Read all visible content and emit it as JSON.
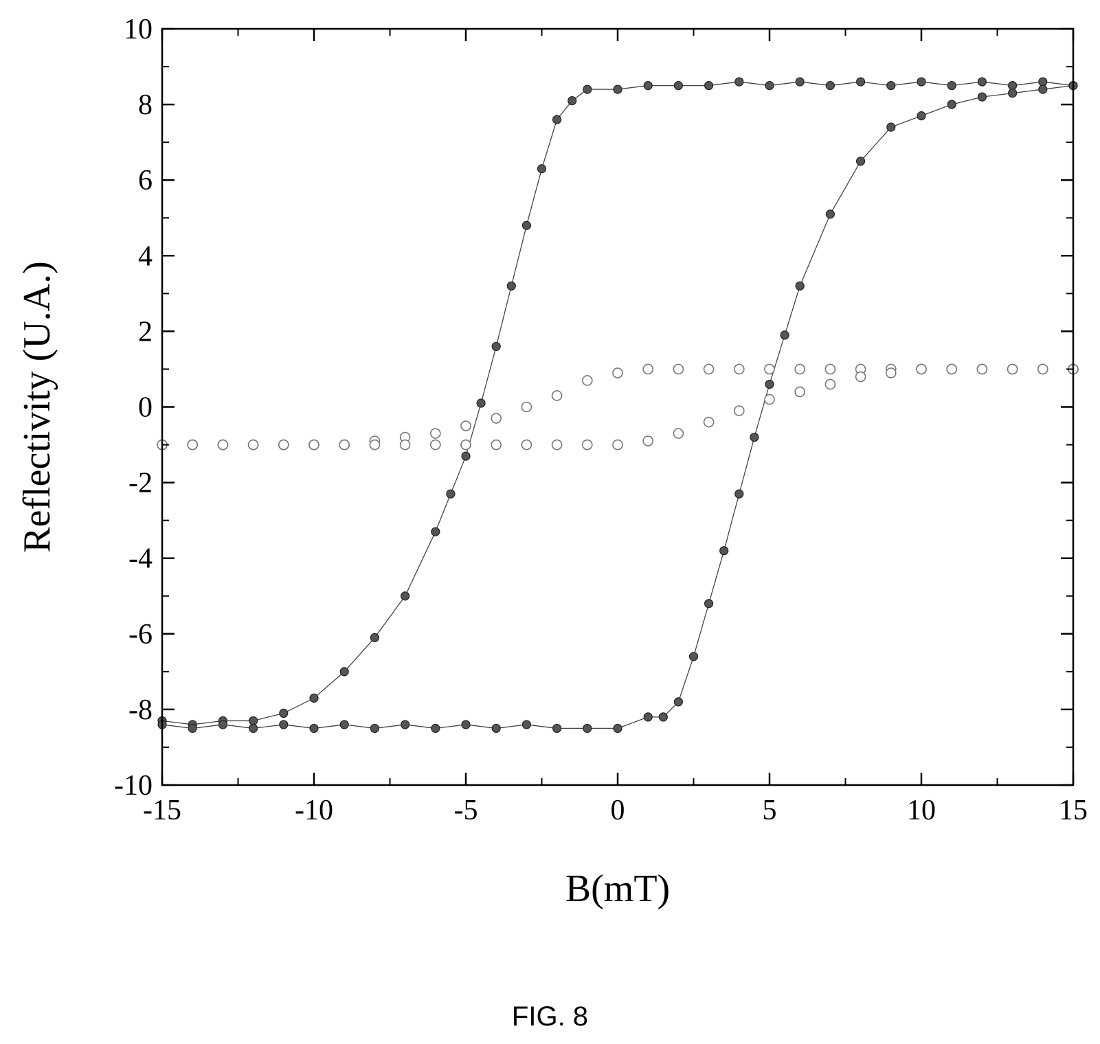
{
  "figure_label": "FIG. 8",
  "chart_data": {
    "type": "scatter",
    "xlabel": "B(mT)",
    "ylabel": "Reflectivity (U.A.)",
    "xlim": [
      -15,
      15
    ],
    "ylim": [
      -10,
      10
    ],
    "xticks": [
      -15,
      -10,
      -5,
      0,
      5,
      10,
      15
    ],
    "yticks": [
      -10,
      -8,
      -6,
      -4,
      -2,
      0,
      2,
      4,
      6,
      8,
      10
    ],
    "xtick_labels": [
      "-15",
      "-10",
      "-5",
      "0",
      "5",
      "10",
      "15"
    ],
    "ytick_labels": [
      "-10",
      "-8",
      "-6",
      "-4",
      "-2",
      "0",
      "2",
      "4",
      "6",
      "8",
      "10"
    ],
    "grid": false,
    "legend": "none",
    "series": [
      {
        "marker": "filled-circle",
        "color": "#555555",
        "connected": true,
        "x": [
          15,
          14,
          13,
          12,
          11,
          10,
          9,
          8,
          7,
          6,
          5,
          4,
          3,
          2,
          1,
          0,
          -1,
          -1.5,
          -2,
          -2.5,
          -3,
          -3.5,
          -4,
          -4.5,
          -5,
          -5.5,
          -6,
          -7,
          -8,
          -9,
          -10,
          -11,
          -12,
          -13,
          -14,
          -15
        ],
        "y": [
          8.5,
          8.6,
          8.5,
          8.6,
          8.5,
          8.6,
          8.5,
          8.6,
          8.5,
          8.6,
          8.5,
          8.6,
          8.5,
          8.5,
          8.5,
          8.4,
          8.4,
          8.1,
          7.6,
          6.3,
          4.8,
          3.2,
          1.6,
          0.1,
          -1.3,
          -2.3,
          -3.3,
          -5.0,
          -6.1,
          -7.0,
          -7.7,
          -8.1,
          -8.3,
          -8.3,
          -8.4,
          -8.3
        ]
      },
      {
        "marker": "filled-circle",
        "color": "#555555",
        "connected": true,
        "x": [
          -15,
          -14,
          -13,
          -12,
          -11,
          -10,
          -9,
          -8,
          -7,
          -6,
          -5,
          -4,
          -3,
          -2,
          -1,
          0,
          1,
          1.5,
          2,
          2.5,
          3,
          3.5,
          4,
          4.5,
          5,
          5.5,
          6,
          7,
          8,
          9,
          10,
          11,
          12,
          13,
          14,
          15
        ],
        "y": [
          -8.4,
          -8.5,
          -8.4,
          -8.5,
          -8.4,
          -8.5,
          -8.4,
          -8.5,
          -8.4,
          -8.5,
          -8.4,
          -8.5,
          -8.4,
          -8.5,
          -8.5,
          -8.5,
          -8.2,
          -8.2,
          -7.8,
          -6.6,
          -5.2,
          -3.8,
          -2.3,
          -0.8,
          0.6,
          1.9,
          3.2,
          5.1,
          6.5,
          7.4,
          7.7,
          8.0,
          8.2,
          8.3,
          8.4,
          8.5
        ]
      },
      {
        "marker": "open-circle",
        "color": "#777777",
        "connected": false,
        "x": [
          15,
          14,
          13,
          12,
          11,
          10,
          9,
          8,
          7,
          6,
          5,
          4,
          3,
          2,
          1,
          0,
          -1,
          -2,
          -3,
          -4,
          -5,
          -6,
          -7,
          -8,
          -9,
          -10,
          -11,
          -12,
          -13,
          -14,
          -15
        ],
        "y": [
          1.0,
          1.0,
          1.0,
          1.0,
          1.0,
          1.0,
          1.0,
          1.0,
          1.0,
          1.0,
          1.0,
          1.0,
          1.0,
          1.0,
          1.0,
          0.9,
          0.7,
          0.3,
          0.0,
          -0.3,
          -0.5,
          -0.7,
          -0.8,
          -0.9,
          -1.0,
          -1.0,
          -1.0,
          -1.0,
          -1.0,
          -1.0,
          -1.0
        ]
      },
      {
        "marker": "open-circle",
        "color": "#777777",
        "connected": false,
        "x": [
          -15,
          -14,
          -13,
          -12,
          -11,
          -10,
          -9,
          -8,
          -7,
          -6,
          -5,
          -4,
          -3,
          -2,
          -1,
          0,
          1,
          2,
          3,
          4,
          5,
          6,
          7,
          8,
          9,
          10,
          11,
          12,
          13,
          14,
          15
        ],
        "y": [
          -1.0,
          -1.0,
          -1.0,
          -1.0,
          -1.0,
          -1.0,
          -1.0,
          -1.0,
          -1.0,
          -1.0,
          -1.0,
          -1.0,
          -1.0,
          -1.0,
          -1.0,
          -1.0,
          -0.9,
          -0.7,
          -0.4,
          -0.1,
          0.2,
          0.4,
          0.6,
          0.8,
          0.9,
          1.0,
          1.0,
          1.0,
          1.0,
          1.0,
          1.0
        ]
      }
    ]
  }
}
